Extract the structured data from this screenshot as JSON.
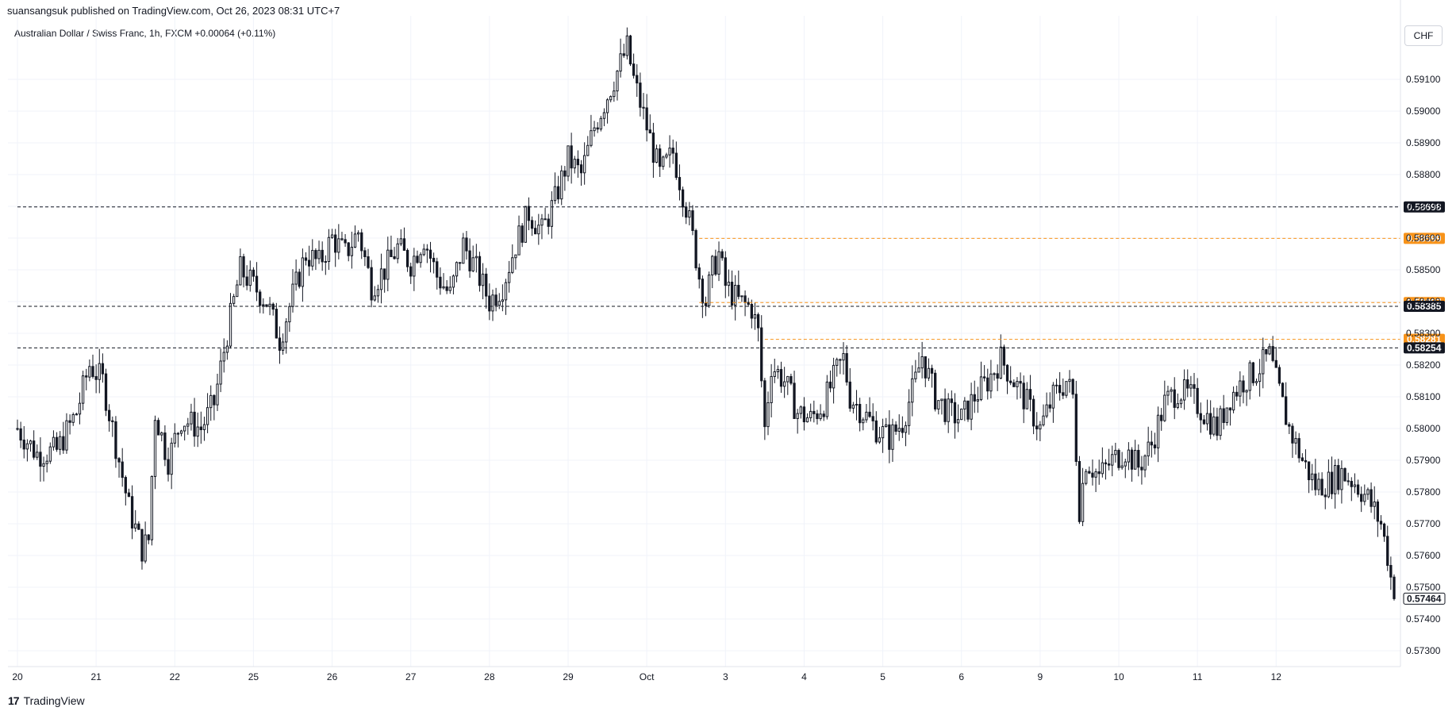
{
  "header": {
    "published": "suansangsuk published on TradingView.com, Oct 26, 2023 08:31 UTC+7"
  },
  "symbol": {
    "name": "Australian Dollar / Swiss Franc, 1h, FXCM",
    "change": "+0.00064 (+0.11%)"
  },
  "currency_label": "CHF",
  "footer": {
    "logo_mark": "17",
    "logo_text": "TradingView"
  },
  "colors": {
    "candle": "#131722",
    "black_level": "#131722",
    "orange_level": "#f7931a",
    "grid": "#f0f3fa"
  },
  "chart_data": {
    "type": "candlestick",
    "symbol": "Australian Dollar / Swiss Franc",
    "interval": "1h",
    "source": "FXCM",
    "ylim": [
      0.5725,
      0.593
    ],
    "y_ticks": [
      "0.57300",
      "0.57400",
      "0.57500",
      "0.57600",
      "0.57700",
      "0.57800",
      "0.57900",
      "0.58000",
      "0.58100",
      "0.58200",
      "0.58300",
      "0.58400",
      "0.58500",
      "0.58600",
      "0.58700",
      "0.58800",
      "0.58900",
      "0.59000",
      "0.59100"
    ],
    "x_ticks": [
      {
        "label": "20",
        "t": 0
      },
      {
        "label": "21",
        "t": 24
      },
      {
        "label": "22",
        "t": 48
      },
      {
        "label": "25",
        "t": 72
      },
      {
        "label": "26",
        "t": 96
      },
      {
        "label": "27",
        "t": 120
      },
      {
        "label": "28",
        "t": 144
      },
      {
        "label": "29",
        "t": 168
      },
      {
        "label": "Oct",
        "t": 192
      },
      {
        "label": "3",
        "t": 216
      },
      {
        "label": "4",
        "t": 240
      },
      {
        "label": "5",
        "t": 264
      },
      {
        "label": "6",
        "t": 288
      },
      {
        "label": "9",
        "t": 312
      },
      {
        "label": "10",
        "t": 336
      },
      {
        "label": "11",
        "t": 360
      },
      {
        "label": "12",
        "t": 384
      }
    ],
    "price_path": [
      [
        0,
        0.58
      ],
      [
        6,
        0.5792
      ],
      [
        12,
        0.5793
      ],
      [
        18,
        0.5805
      ],
      [
        22,
        0.582
      ],
      [
        26,
        0.5815
      ],
      [
        30,
        0.5795
      ],
      [
        34,
        0.5775
      ],
      [
        38,
        0.5762
      ],
      [
        40,
        0.5765
      ],
      [
        42,
        0.5805
      ],
      [
        46,
        0.579
      ],
      [
        50,
        0.5803
      ],
      [
        56,
        0.58
      ],
      [
        60,
        0.5808
      ],
      [
        64,
        0.583
      ],
      [
        68,
        0.585
      ],
      [
        72,
        0.5845
      ],
      [
        76,
        0.584
      ],
      [
        80,
        0.5828
      ],
      [
        84,
        0.5842
      ],
      [
        88,
        0.5855
      ],
      [
        92,
        0.5852
      ],
      [
        96,
        0.586
      ],
      [
        100,
        0.5855
      ],
      [
        104,
        0.5862
      ],
      [
        108,
        0.5845
      ],
      [
        112,
        0.585
      ],
      [
        116,
        0.5857
      ],
      [
        120,
        0.5852
      ],
      [
        124,
        0.586
      ],
      [
        128,
        0.5848
      ],
      [
        132,
        0.5842
      ],
      [
        136,
        0.5858
      ],
      [
        140,
        0.585
      ],
      [
        144,
        0.584
      ],
      [
        148,
        0.5845
      ],
      [
        152,
        0.5858
      ],
      [
        156,
        0.5868
      ],
      [
        160,
        0.5862
      ],
      [
        164,
        0.5872
      ],
      [
        168,
        0.5885
      ],
      [
        172,
        0.588
      ],
      [
        176,
        0.5895
      ],
      [
        180,
        0.5905
      ],
      [
        184,
        0.5915
      ],
      [
        186,
        0.592
      ],
      [
        188,
        0.591
      ],
      [
        192,
        0.5895
      ],
      [
        196,
        0.588
      ],
      [
        200,
        0.5887
      ],
      [
        204,
        0.587
      ],
      [
        206,
        0.586
      ],
      [
        208,
        0.5848
      ],
      [
        210,
        0.584
      ],
      [
        212,
        0.585
      ],
      [
        214,
        0.5855
      ],
      [
        216,
        0.5845
      ],
      [
        220,
        0.584
      ],
      [
        224,
        0.5838
      ],
      [
        226,
        0.583
      ],
      [
        228,
        0.58
      ],
      [
        230,
        0.582
      ],
      [
        234,
        0.5815
      ],
      [
        238,
        0.5805
      ],
      [
        242,
        0.5803
      ],
      [
        246,
        0.5808
      ],
      [
        250,
        0.5818
      ],
      [
        252,
        0.5822
      ],
      [
        254,
        0.581
      ],
      [
        258,
        0.5805
      ],
      [
        262,
        0.58
      ],
      [
        266,
        0.5797
      ],
      [
        270,
        0.5802
      ],
      [
        274,
        0.5815
      ],
      [
        276,
        0.5823
      ],
      [
        280,
        0.581
      ],
      [
        284,
        0.5805
      ],
      [
        288,
        0.5803
      ],
      [
        292,
        0.581
      ],
      [
        296,
        0.5815
      ],
      [
        300,
        0.5822
      ],
      [
        304,
        0.5815
      ],
      [
        308,
        0.5808
      ],
      [
        312,
        0.58
      ],
      [
        316,
        0.581
      ],
      [
        320,
        0.5815
      ],
      [
        322,
        0.581
      ],
      [
        324,
        0.5775
      ],
      [
        326,
        0.579
      ],
      [
        330,
        0.5785
      ],
      [
        334,
        0.579
      ],
      [
        338,
        0.5793
      ],
      [
        342,
        0.5788
      ],
      [
        346,
        0.5795
      ],
      [
        350,
        0.5808
      ],
      [
        354,
        0.5812
      ],
      [
        358,
        0.581
      ],
      [
        362,
        0.5805
      ],
      [
        366,
        0.58
      ],
      [
        370,
        0.581
      ],
      [
        374,
        0.5815
      ],
      [
        378,
        0.5818
      ],
      [
        382,
        0.5823
      ],
      [
        384,
        0.5815
      ],
      [
        388,
        0.58
      ],
      [
        392,
        0.579
      ],
      [
        396,
        0.5782
      ],
      [
        400,
        0.5783
      ],
      [
        404,
        0.5786
      ],
      [
        408,
        0.5783
      ],
      [
        412,
        0.5778
      ],
      [
        416,
        0.577
      ],
      [
        418,
        0.576
      ],
      [
        420,
        0.5746
      ]
    ],
    "last_candle_t": 420,
    "levels": [
      {
        "value": "0.58698",
        "color": "black",
        "style": "dashed",
        "start_t": 0
      },
      {
        "value": "0.58599",
        "color": "orange",
        "style": "dashed",
        "start_t": 208
      },
      {
        "value": "0.58397",
        "color": "orange",
        "style": "dashed",
        "start_t": 208
      },
      {
        "value": "0.58385",
        "color": "black",
        "style": "dashed",
        "start_t": 0
      },
      {
        "value": "0.58281",
        "color": "orange",
        "style": "dashed",
        "start_t": 228
      },
      {
        "value": "0.58254",
        "color": "black",
        "style": "dashed",
        "start_t": 0
      }
    ],
    "last_price": "0.57464"
  }
}
